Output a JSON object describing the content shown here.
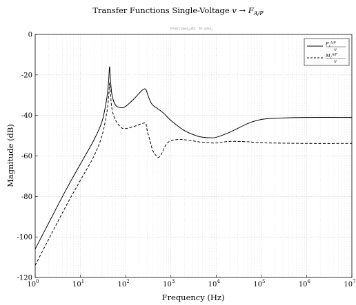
{
  "chart_data": {
    "type": "line",
    "title": "Transfer Functions Single-Voltage v → F",
    "title_parts": {
      "prefix": "Transfer Functions Single-Voltage ",
      "v": "v",
      "arrow": " → ",
      "F": "F",
      "sub": "A/P"
    },
    "subtitle": "From: piez_v oll1  To: piez_F",
    "subtitle_parts": {
      "from": "From: piez",
      "from_sub": "v",
      "from_rest": "oll1",
      "to": "To: piez",
      "to_sub": "F"
    },
    "xlabel": "Frequency (Hz)",
    "ylabel": "Magnitude (dB)",
    "xscale": "log",
    "xlim": [
      1,
      10000000
    ],
    "ylim": [
      -120,
      0
    ],
    "grid": true,
    "legend_position": "top-right",
    "x_ticks": [
      {
        "value": 1,
        "base": "10",
        "exp": "0"
      },
      {
        "value": 10,
        "base": "10",
        "exp": "1"
      },
      {
        "value": 100,
        "base": "10",
        "exp": "2"
      },
      {
        "value": 1000,
        "base": "10",
        "exp": "3"
      },
      {
        "value": 10000,
        "base": "10",
        "exp": "4"
      },
      {
        "value": 100000,
        "base": "10",
        "exp": "5"
      },
      {
        "value": 1000000,
        "base": "10",
        "exp": "6"
      },
      {
        "value": 10000000,
        "base": "10",
        "exp": "7"
      }
    ],
    "y_ticks": [
      "0",
      "-20",
      "-40",
      "-60",
      "-80",
      "-100",
      "-120"
    ],
    "series": [
      {
        "name": "F_z / v",
        "legend": {
          "num": "F",
          "num_sub": "z",
          "num_sup": "A/P",
          "den": "v"
        },
        "style": "solid",
        "color": "#000000",
        "x": [
          1,
          2,
          5,
          10,
          20,
          30,
          38,
          42,
          44,
          46,
          50,
          60,
          80,
          100,
          150,
          200,
          250,
          280,
          300,
          350,
          400,
          500,
          700,
          1000,
          2000,
          4000,
          7000,
          10000,
          20000,
          50000,
          100000,
          200000,
          1000000,
          10000000
        ],
        "y": [
          -106,
          -93,
          -76,
          -64,
          -52,
          -43,
          -32,
          -23,
          -16,
          -22,
          -30,
          -35,
          -36.2,
          -35.5,
          -32,
          -29,
          -27,
          -27.2,
          -29,
          -33,
          -35,
          -36.5,
          -39,
          -42.5,
          -47.5,
          -50.3,
          -51,
          -50.8,
          -48.3,
          -44,
          -42,
          -41.4,
          -41,
          -41
        ]
      },
      {
        "name": "M_z / v",
        "legend": {
          "num": "M",
          "num_sub": "z",
          "num_sup": "A/P",
          "den": "v"
        },
        "style": "dashed",
        "color": "#000000",
        "x": [
          1,
          2,
          5,
          10,
          20,
          30,
          38,
          42,
          44,
          46,
          50,
          60,
          80,
          100,
          150,
          200,
          250,
          280,
          300,
          350,
          400,
          500,
          550,
          600,
          700,
          800,
          1000,
          1500,
          2000,
          3000,
          5000,
          10000,
          20000,
          50000,
          100000,
          1000000,
          10000000
        ],
        "y": [
          -114,
          -101,
          -84,
          -72,
          -60,
          -50,
          -39,
          -31,
          -24,
          -29,
          -37,
          -42.5,
          -46,
          -46.5,
          -45.5,
          -44.5,
          -43.8,
          -44,
          -47.5,
          -53,
          -57.5,
          -60.5,
          -60.5,
          -59.5,
          -56.5,
          -54,
          -52.5,
          -51.8,
          -52,
          -52.5,
          -53.3,
          -53.6,
          -52.8,
          -53,
          -53.5,
          -53.8,
          -53.8
        ]
      }
    ]
  }
}
